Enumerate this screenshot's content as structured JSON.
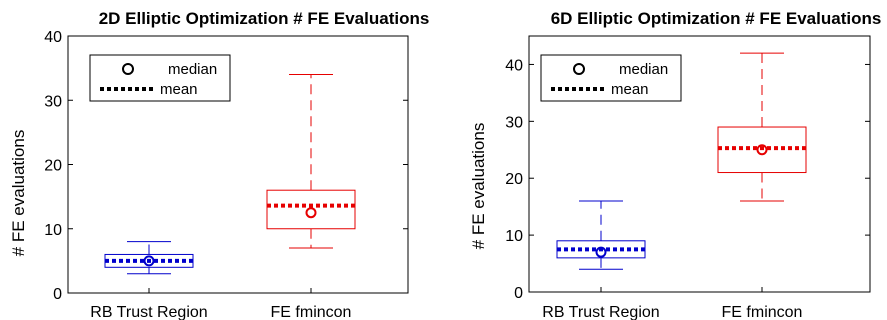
{
  "chart_data": [
    {
      "type": "box",
      "title": "2D Elliptic Optimization # FE Evaluations",
      "xlabel": "",
      "ylabel": "# FE evaluations",
      "ylim": [
        0,
        40
      ],
      "yticks": [
        0,
        10,
        20,
        30,
        40
      ],
      "categories": [
        "RB Trust Region",
        "FE fmincon"
      ],
      "grid": false,
      "legend": {
        "position": "top-left",
        "entries": [
          "median",
          "mean"
        ]
      },
      "boxes": [
        {
          "name": "RB Trust Region",
          "color": "#0000cc",
          "whisker_low": 3,
          "q1": 4,
          "median": 5,
          "mean": 5,
          "q3": 6,
          "whisker_high": 8
        },
        {
          "name": "FE fmincon",
          "color": "#e60000",
          "whisker_low": 7,
          "q1": 10,
          "median": 12.5,
          "mean": 13.6,
          "q3": 16,
          "whisker_high": 34
        }
      ]
    },
    {
      "type": "box",
      "title": "6D Elliptic Optimization # FE Evaluations",
      "xlabel": "",
      "ylabel": "# FE evaluations",
      "ylim": [
        0,
        45
      ],
      "yticks": [
        0,
        10,
        20,
        30,
        40
      ],
      "categories": [
        "RB Trust Region",
        "FE fmincon"
      ],
      "grid": false,
      "legend": {
        "position": "top-left",
        "entries": [
          "median",
          "mean"
        ]
      },
      "boxes": [
        {
          "name": "RB Trust Region",
          "color": "#0000cc",
          "whisker_low": 4,
          "q1": 6,
          "median": 7,
          "mean": 7.5,
          "q3": 9,
          "whisker_high": 16
        },
        {
          "name": "FE fmincon",
          "color": "#e60000",
          "whisker_low": 16,
          "q1": 21,
          "median": 25,
          "mean": 25.3,
          "q3": 29,
          "whisker_high": 42
        }
      ]
    }
  ]
}
